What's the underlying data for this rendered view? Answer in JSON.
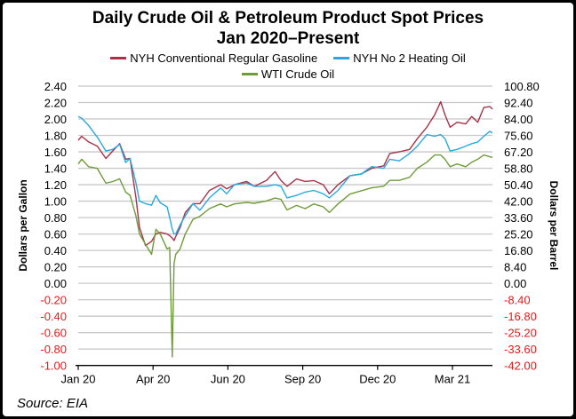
{
  "chart_data": {
    "type": "line",
    "title": "Daily Crude Oil & Petroleum Product Spot Prices",
    "subtitle": "Jan 2020–Present",
    "ylabel_left": "Dollars per Gallon",
    "ylabel_right": "Dollars per Barrel",
    "ylim_left": [
      -1.0,
      2.4
    ],
    "ylim_right": [
      -42.0,
      100.8
    ],
    "yticks_left": [
      "2.40",
      "2.20",
      "2.00",
      "1.80",
      "1.60",
      "1.40",
      "1.20",
      "1.00",
      "0.80",
      "0.60",
      "0.40",
      "0.20",
      "0.00",
      "-0.20",
      "-0.40",
      "-0.60",
      "-0.80",
      "-1.00"
    ],
    "yticks_right": [
      "100.80",
      "92.40",
      "84.00",
      "75.60",
      "67.20",
      "58.80",
      "50.40",
      "42.00",
      "33.60",
      "25.20",
      "16.80",
      "8.40",
      "0.00",
      "-8.40",
      "-16.80",
      "-25.20",
      "-33.60",
      "-42.00"
    ],
    "xticks": [
      "Jan 20",
      "Apr 20",
      "Jun 20",
      "Sep 20",
      "Dec 20",
      "Mar 21"
    ],
    "negative_tick_color": "#e31b1b",
    "grid": true,
    "legend_position": "top",
    "source": "Source: EIA",
    "x": [
      "2020-01-02",
      "2020-01-06",
      "2020-01-14",
      "2020-01-24",
      "2020-02-03",
      "2020-02-11",
      "2020-02-19",
      "2020-02-26",
      "2020-03-02",
      "2020-03-09",
      "2020-03-13",
      "2020-03-20",
      "2020-03-27",
      "2020-04-01",
      "2020-04-06",
      "2020-04-14",
      "2020-04-17",
      "2020-04-20",
      "2020-04-22",
      "2020-04-24",
      "2020-04-29",
      "2020-05-05",
      "2020-05-14",
      "2020-05-22",
      "2020-06-02",
      "2020-06-15",
      "2020-06-22",
      "2020-07-01",
      "2020-07-15",
      "2020-07-24",
      "2020-08-07",
      "2020-08-17",
      "2020-08-24",
      "2020-08-31",
      "2020-09-11",
      "2020-09-21",
      "2020-10-01",
      "2020-10-12",
      "2020-10-19",
      "2020-10-29",
      "2020-11-12",
      "2020-11-25",
      "2020-12-07",
      "2020-12-21",
      "2020-12-28",
      "2021-01-08",
      "2021-01-20",
      "2021-01-29",
      "2021-02-09",
      "2021-02-18",
      "2021-02-25",
      "2021-03-02",
      "2021-03-08",
      "2021-03-16",
      "2021-03-26",
      "2021-04-02",
      "2021-04-09",
      "2021-04-16",
      "2021-04-23",
      "2021-04-26"
    ],
    "series": [
      {
        "name": "NYH Conventional Regular Gasoline",
        "axis": "left",
        "color": "#a83248",
        "values": [
          1.74,
          1.79,
          1.72,
          1.67,
          1.52,
          1.61,
          1.7,
          1.51,
          1.52,
          1.04,
          0.68,
          0.46,
          0.51,
          0.6,
          0.62,
          0.6,
          0.58,
          0.55,
          0.52,
          0.57,
          0.68,
          0.86,
          0.97,
          0.97,
          1.13,
          1.2,
          1.15,
          1.2,
          1.24,
          1.18,
          1.25,
          1.36,
          1.25,
          1.18,
          1.27,
          1.24,
          1.25,
          1.2,
          1.09,
          1.2,
          1.31,
          1.33,
          1.4,
          1.43,
          1.58,
          1.6,
          1.63,
          1.76,
          1.9,
          2.05,
          2.21,
          2.05,
          1.9,
          1.96,
          1.94,
          2.03,
          1.96,
          2.14,
          2.15,
          2.12
        ]
      },
      {
        "name": "NYH No 2 Heating Oil",
        "axis": "left",
        "color": "#2aa9e0",
        "values": [
          2.03,
          2.01,
          1.92,
          1.78,
          1.61,
          1.63,
          1.69,
          1.47,
          1.52,
          1.22,
          1.0,
          0.97,
          0.95,
          1.07,
          0.98,
          0.93,
          0.8,
          0.66,
          0.6,
          0.6,
          0.71,
          0.82,
          0.97,
          0.89,
          1.04,
          1.16,
          1.09,
          1.2,
          1.22,
          1.18,
          1.18,
          1.2,
          1.18,
          1.04,
          1.07,
          1.11,
          1.13,
          1.09,
          1.04,
          1.13,
          1.31,
          1.33,
          1.42,
          1.4,
          1.51,
          1.49,
          1.58,
          1.67,
          1.81,
          1.79,
          1.81,
          1.76,
          1.61,
          1.63,
          1.67,
          1.7,
          1.72,
          1.79,
          1.85,
          1.83
        ]
      },
      {
        "name": "WTI Crude Oil",
        "axis": "right",
        "color": "#6f9c3a",
        "values": [
          61.0,
          63.4,
          59.6,
          58.8,
          51.2,
          52.0,
          53.4,
          46.6,
          45.0,
          34.3,
          25.2,
          20.0,
          14.8,
          27.6,
          25.2,
          17.6,
          18.3,
          -37.6,
          10.0,
          14.8,
          17.6,
          25.2,
          32.7,
          34.3,
          38.2,
          40.6,
          39.1,
          40.6,
          41.3,
          40.9,
          42.1,
          43.6,
          42.9,
          37.5,
          39.8,
          38.2,
          40.6,
          39.1,
          36.2,
          40.6,
          45.6,
          47.3,
          48.8,
          49.6,
          52.6,
          52.6,
          54.2,
          58.8,
          61.9,
          65.6,
          65.6,
          63.4,
          59.6,
          61.0,
          59.6,
          61.9,
          63.4,
          65.6,
          64.7,
          64.3
        ]
      }
    ]
  }
}
